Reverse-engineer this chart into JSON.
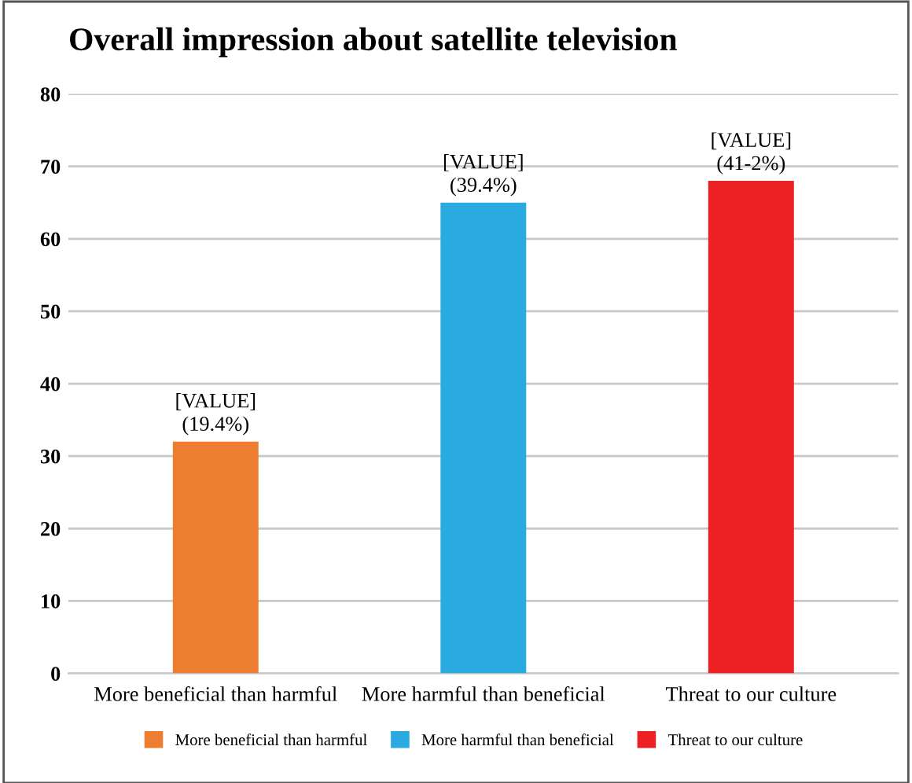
{
  "chart_data": {
    "type": "bar",
    "title": "Overall impression about satellite television",
    "categories": [
      "More beneficial than harmful",
      "More harmful than beneficial",
      "Threat to our culture"
    ],
    "stacked": true,
    "series": [
      {
        "name": "More beneficial than harmful",
        "color": "#ed7d31",
        "values": [
          32,
          null,
          null
        ]
      },
      {
        "name": "More harmful than beneficial",
        "color": "#29abe2",
        "values": [
          null,
          65,
          null
        ]
      },
      {
        "name": "Threat to our culture",
        "color": "#ed2024",
        "values": [
          null,
          null,
          68
        ]
      }
    ],
    "annotations": [
      {
        "text": "[VALUE]\n(19.4%)",
        "x": "More beneficial than harmful",
        "y": 32
      },
      {
        "text": "[VALUE]\n(39.4%)",
        "x": "More harmful than beneficial",
        "y": 65
      },
      {
        "text": "[VALUE]\n(41-2%)",
        "x": "Threat to our culture",
        "y": 68
      }
    ],
    "ylim": [
      0,
      80
    ],
    "yticks": [
      0,
      10,
      20,
      30,
      40,
      50,
      60,
      70,
      80
    ],
    "grid": "y",
    "legend": "bottom"
  }
}
